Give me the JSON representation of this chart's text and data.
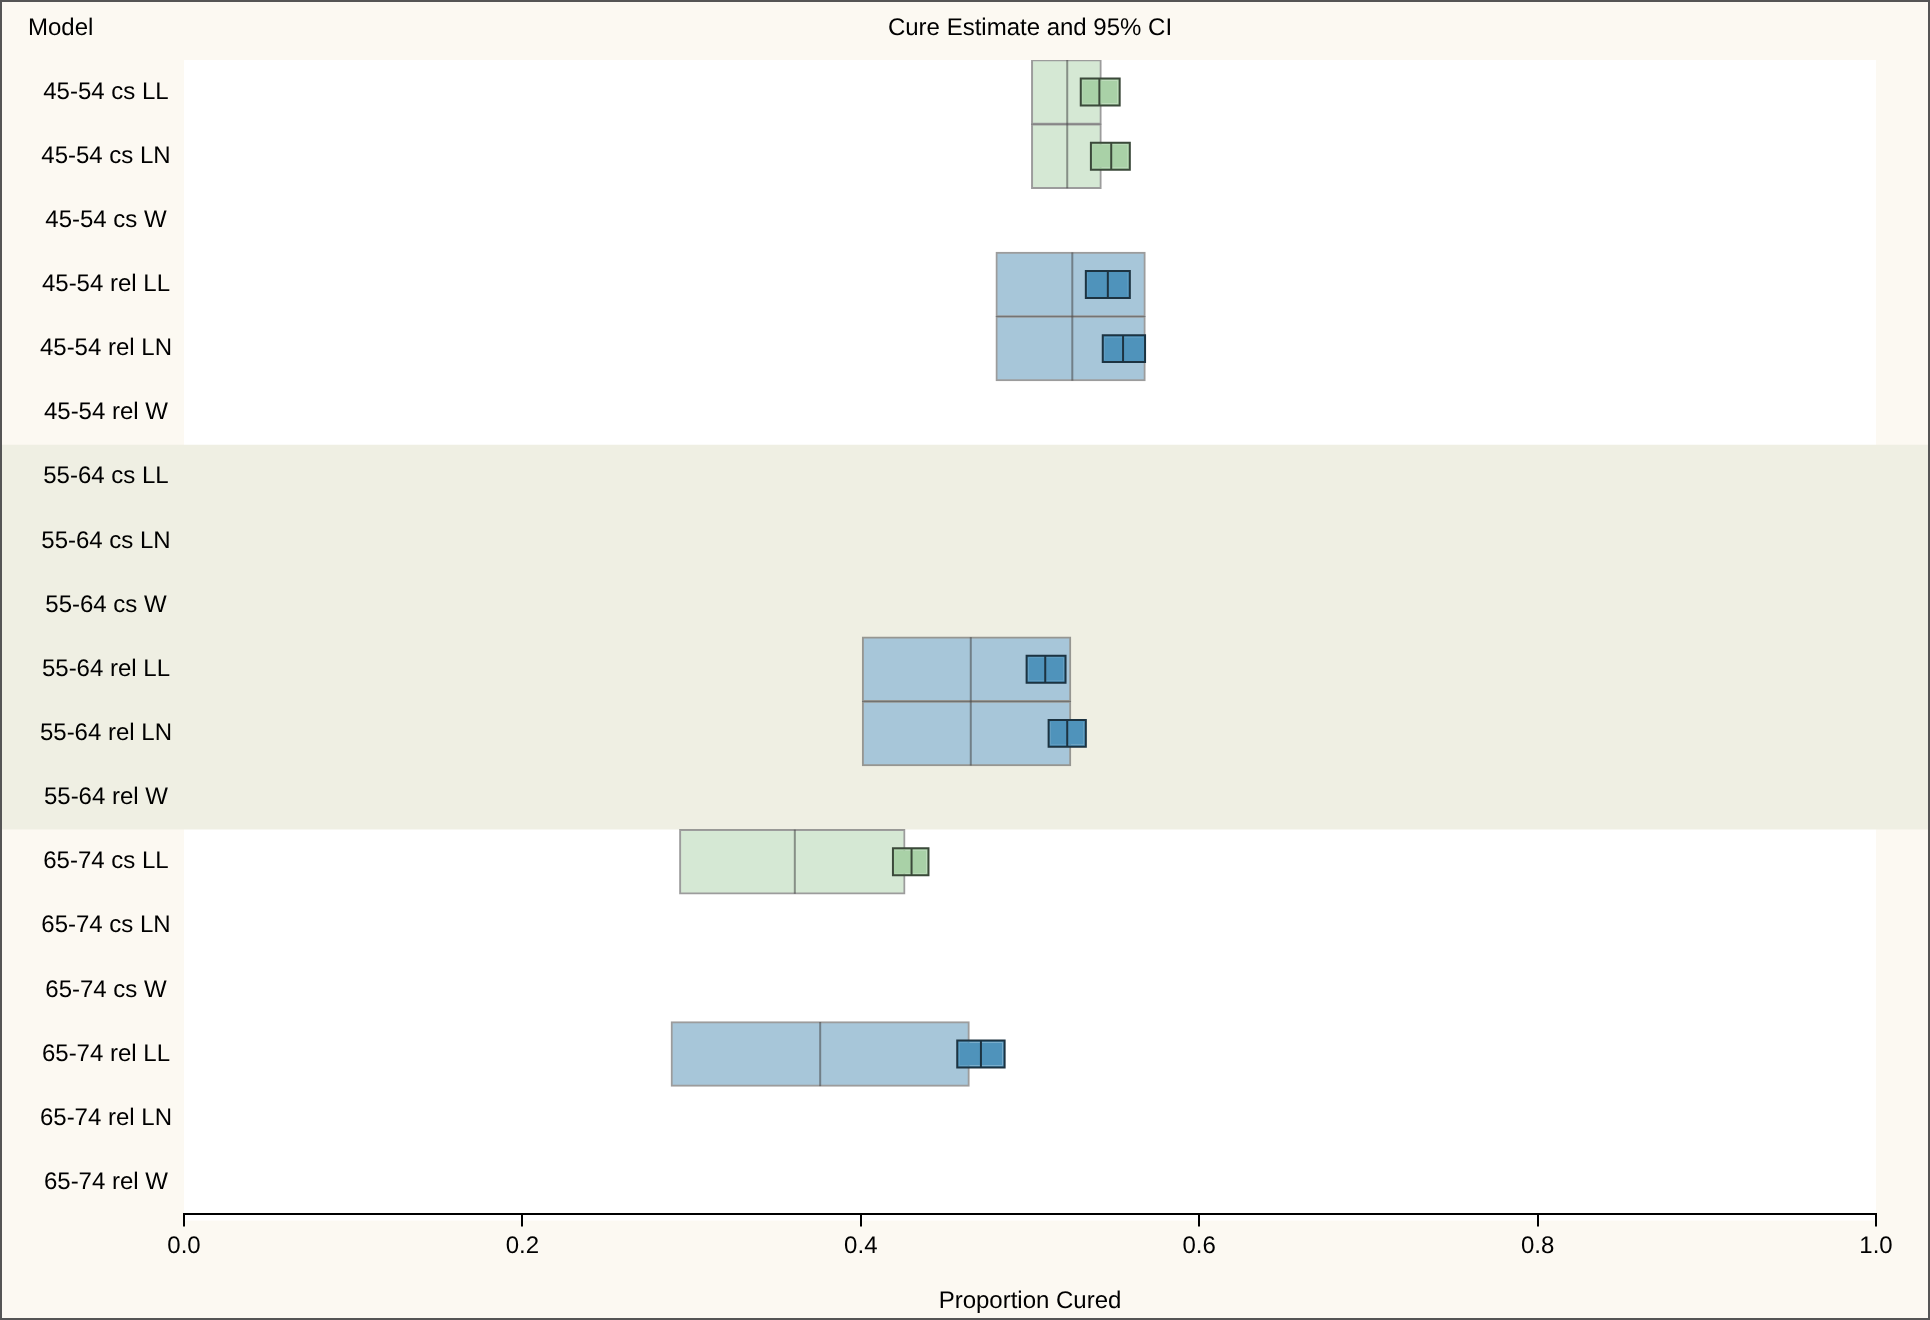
{
  "chart_data": {
    "type": "box",
    "orientation": "horizontal",
    "title": "Cure Estimate and 95% CI",
    "ylabel": "Model",
    "xlabel": "Proportion Cured",
    "categories": [
      "45-54 cs LL",
      "45-54 cs LN",
      "45-54 cs W",
      "45-54 rel LL",
      "45-54 rel LN",
      "45-54 rel W",
      "55-64 cs LL",
      "55-64 cs LN",
      "55-64 cs W",
      "55-64 rel LL",
      "55-64 rel LN",
      "55-64 rel W",
      "65-74 cs LL",
      "65-74 cs LN",
      "65-74 cs W",
      "65-74 rel LL",
      "65-74 rel LN",
      "65-74 rel W"
    ],
    "xlim": [
      0,
      1
    ],
    "xticks": [
      {
        "value": 0,
        "label": "0.0"
      },
      0.2,
      0.4,
      0.6,
      0.8,
      {
        "value": 1,
        "label": "1.0"
      }
    ],
    "grid": false,
    "legend": false,
    "bands": [
      {
        "axis": "y",
        "from": "55-64 cs LL",
        "to": "55-64 rel W",
        "color": "#efefe3"
      }
    ],
    "series": [
      {
        "color": "#d5e8d4",
        "boxes": [
          {
            "low": 0.501,
            "q1": 0.501,
            "median": 0.522,
            "q3": 0.542,
            "high": 0.542
          },
          {
            "low": 0.501,
            "q1": 0.501,
            "median": 0.522,
            "q3": 0.542,
            "high": 0.542
          },
          null,
          null,
          null,
          null,
          null,
          null,
          null,
          null,
          null,
          null,
          {
            "low": 0.293,
            "q1": 0.293,
            "median": 0.361,
            "q3": 0.426,
            "high": 0.426
          },
          null,
          null,
          null,
          null,
          null
        ]
      },
      {
        "color": "#a7c6d9",
        "boxes": [
          null,
          null,
          null,
          {
            "low": 0.48,
            "q1": 0.48,
            "median": 0.525,
            "q3": 0.568,
            "high": 0.568
          },
          {
            "low": 0.48,
            "q1": 0.48,
            "median": 0.525,
            "q3": 0.568,
            "high": 0.568
          },
          null,
          null,
          null,
          null,
          {
            "low": 0.401,
            "q1": 0.401,
            "median": 0.465,
            "q3": 0.524,
            "high": 0.524
          },
          {
            "low": 0.401,
            "q1": 0.401,
            "median": 0.465,
            "q3": 0.524,
            "high": 0.524
          },
          null,
          null,
          null,
          null,
          {
            "low": 0.288,
            "q1": 0.288,
            "median": 0.376,
            "q3": 0.464,
            "high": 0.464
          },
          null,
          null
        ]
      },
      {
        "color": "#a9d1a7",
        "boxes": [
          {
            "low": 0.53,
            "q1": 0.53,
            "median": 0.541,
            "q3": 0.553,
            "high": 0.553
          },
          {
            "low": 0.536,
            "q1": 0.536,
            "median": 0.548,
            "q3": 0.559,
            "high": 0.559
          },
          null,
          null,
          null,
          null,
          null,
          null,
          null,
          null,
          null,
          null,
          {
            "low": 0.419,
            "q1": 0.419,
            "median": 0.43,
            "q3": 0.44,
            "high": 0.44
          },
          null,
          null,
          null,
          null,
          null
        ]
      },
      {
        "color": "#4f93bb",
        "boxes": [
          null,
          null,
          null,
          {
            "low": 0.533,
            "q1": 0.533,
            "median": 0.546,
            "q3": 0.559,
            "high": 0.559
          },
          {
            "low": 0.543,
            "q1": 0.543,
            "median": 0.555,
            "q3": 0.568,
            "high": 0.568
          },
          null,
          null,
          null,
          null,
          {
            "low": 0.498,
            "q1": 0.498,
            "median": 0.509,
            "q3": 0.521,
            "high": 0.521
          },
          {
            "low": 0.511,
            "q1": 0.511,
            "median": 0.522,
            "q3": 0.533,
            "high": 0.533
          },
          null,
          null,
          null,
          null,
          {
            "low": 0.457,
            "q1": 0.457,
            "median": 0.471,
            "q3": 0.485,
            "high": 0.485
          },
          null,
          null
        ]
      }
    ]
  }
}
